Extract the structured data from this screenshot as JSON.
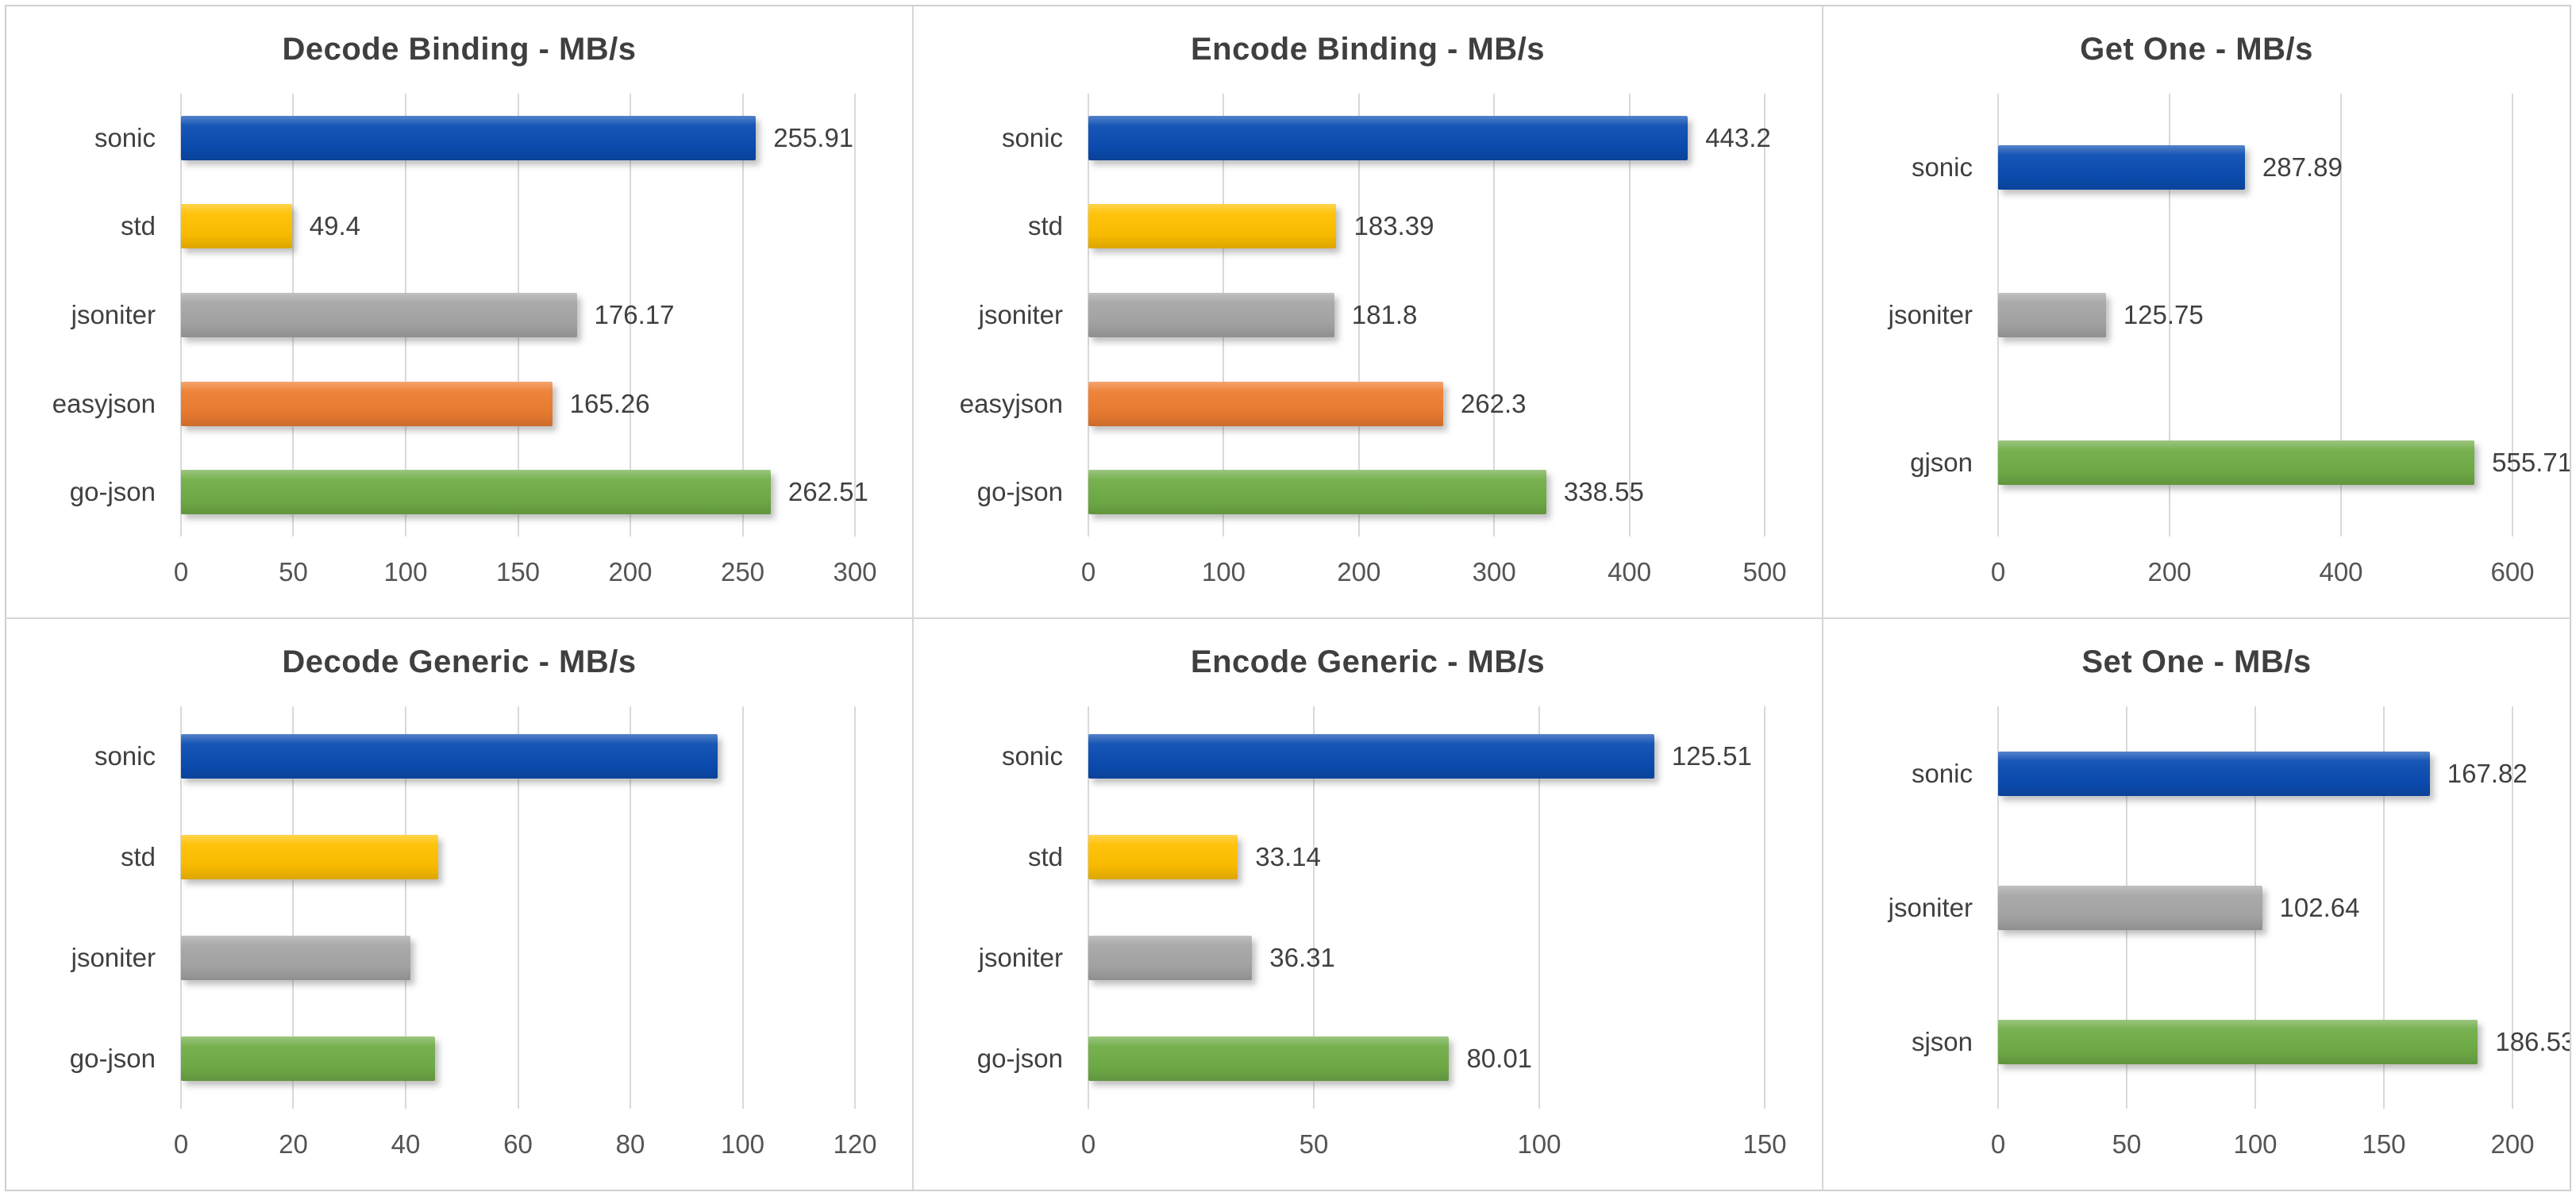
{
  "colors": {
    "frame_border": "#D0D0D0",
    "panel_divider": "#D6D6D6",
    "gridline": "#D9D9D9",
    "title_text": "#3F3F3F",
    "label_text": "#404040",
    "tick_text": "#545454",
    "bar_blue": "#0B4DB2",
    "bar_yellow": "#FFC000",
    "bar_gray": "#A6A6A6",
    "bar_orange": "#ED7D31",
    "bar_green": "#70AD47"
  },
  "chart_data": [
    {
      "type": "bar",
      "orientation": "horizontal",
      "title": "Decode Binding - MB/s",
      "unit": "MB/s",
      "categories": [
        "sonic",
        "std",
        "jsoniter",
        "easyjson",
        "go-json"
      ],
      "values": [
        255.91,
        49.4,
        176.17,
        165.26,
        262.51
      ],
      "data_labels": [
        "255.91",
        "49.4",
        "176.17",
        "165.26",
        "262.51"
      ],
      "bar_colors": [
        "#0B4DB2",
        "#FFC000",
        "#A6A6A6",
        "#ED7D31",
        "#70AD47"
      ],
      "xticks": [
        0,
        50,
        100,
        150,
        200,
        250,
        300
      ],
      "xlim": [
        0,
        300
      ],
      "grid": true,
      "legend": false
    },
    {
      "type": "bar",
      "orientation": "horizontal",
      "title": "Encode Binding - MB/s",
      "unit": "MB/s",
      "categories": [
        "sonic",
        "std",
        "jsoniter",
        "easyjson",
        "go-json"
      ],
      "values": [
        443.2,
        183.39,
        181.8,
        262.3,
        338.55
      ],
      "data_labels": [
        "443.2",
        "183.39",
        "181.8",
        "262.3",
        "338.55"
      ],
      "bar_colors": [
        "#0B4DB2",
        "#FFC000",
        "#A6A6A6",
        "#ED7D31",
        "#70AD47"
      ],
      "xticks": [
        0,
        100,
        200,
        300,
        400,
        500
      ],
      "xlim": [
        0,
        500
      ],
      "grid": true,
      "legend": false
    },
    {
      "type": "bar",
      "orientation": "horizontal",
      "title": "Get One - MB/s",
      "unit": "MB/s",
      "categories": [
        "sonic",
        "jsoniter",
        "gjson"
      ],
      "values": [
        287.89,
        125.75,
        555.71
      ],
      "data_labels": [
        "287.89",
        "125.75",
        "555.71"
      ],
      "bar_colors": [
        "#0B4DB2",
        "#A6A6A6",
        "#70AD47"
      ],
      "xticks": [
        0,
        200,
        400,
        600
      ],
      "xlim": [
        0,
        600
      ],
      "grid": true,
      "legend": false
    },
    {
      "type": "bar",
      "orientation": "horizontal",
      "title": "Decode Generic - MB/s",
      "unit": "MB/s",
      "categories": [
        "sonic",
        "std",
        "jsoniter",
        "go-json"
      ],
      "values": [
        95.6,
        45.8,
        40.9,
        45.2
      ],
      "data_labels": [
        "",
        "",
        "",
        ""
      ],
      "bar_colors": [
        "#0B4DB2",
        "#FFC000",
        "#A6A6A6",
        "#70AD47"
      ],
      "xticks": [
        0,
        20,
        40,
        60,
        80,
        100,
        120
      ],
      "xlim": [
        0,
        120
      ],
      "grid": true,
      "legend": false
    },
    {
      "type": "bar",
      "orientation": "horizontal",
      "title": "Encode Generic - MB/s",
      "unit": "MB/s",
      "categories": [
        "sonic",
        "std",
        "jsoniter",
        "go-json"
      ],
      "values": [
        125.51,
        33.14,
        36.31,
        80.01
      ],
      "data_labels": [
        "125.51",
        "33.14",
        "36.31",
        "80.01"
      ],
      "bar_colors": [
        "#0B4DB2",
        "#FFC000",
        "#A6A6A6",
        "#70AD47"
      ],
      "xticks": [
        0,
        50,
        100,
        150
      ],
      "xlim": [
        0,
        150
      ],
      "grid": true,
      "legend": false
    },
    {
      "type": "bar",
      "orientation": "horizontal",
      "title": "Set One - MB/s",
      "unit": "MB/s",
      "categories": [
        "sonic",
        "jsoniter",
        "sjson"
      ],
      "values": [
        167.82,
        102.64,
        186.53
      ],
      "data_labels": [
        "167.82",
        "102.64",
        "186.53"
      ],
      "bar_colors": [
        "#0B4DB2",
        "#A6A6A6",
        "#70AD47"
      ],
      "xticks": [
        0,
        50,
        100,
        150,
        200
      ],
      "xlim": [
        0,
        200
      ],
      "grid": true,
      "legend": false
    }
  ]
}
